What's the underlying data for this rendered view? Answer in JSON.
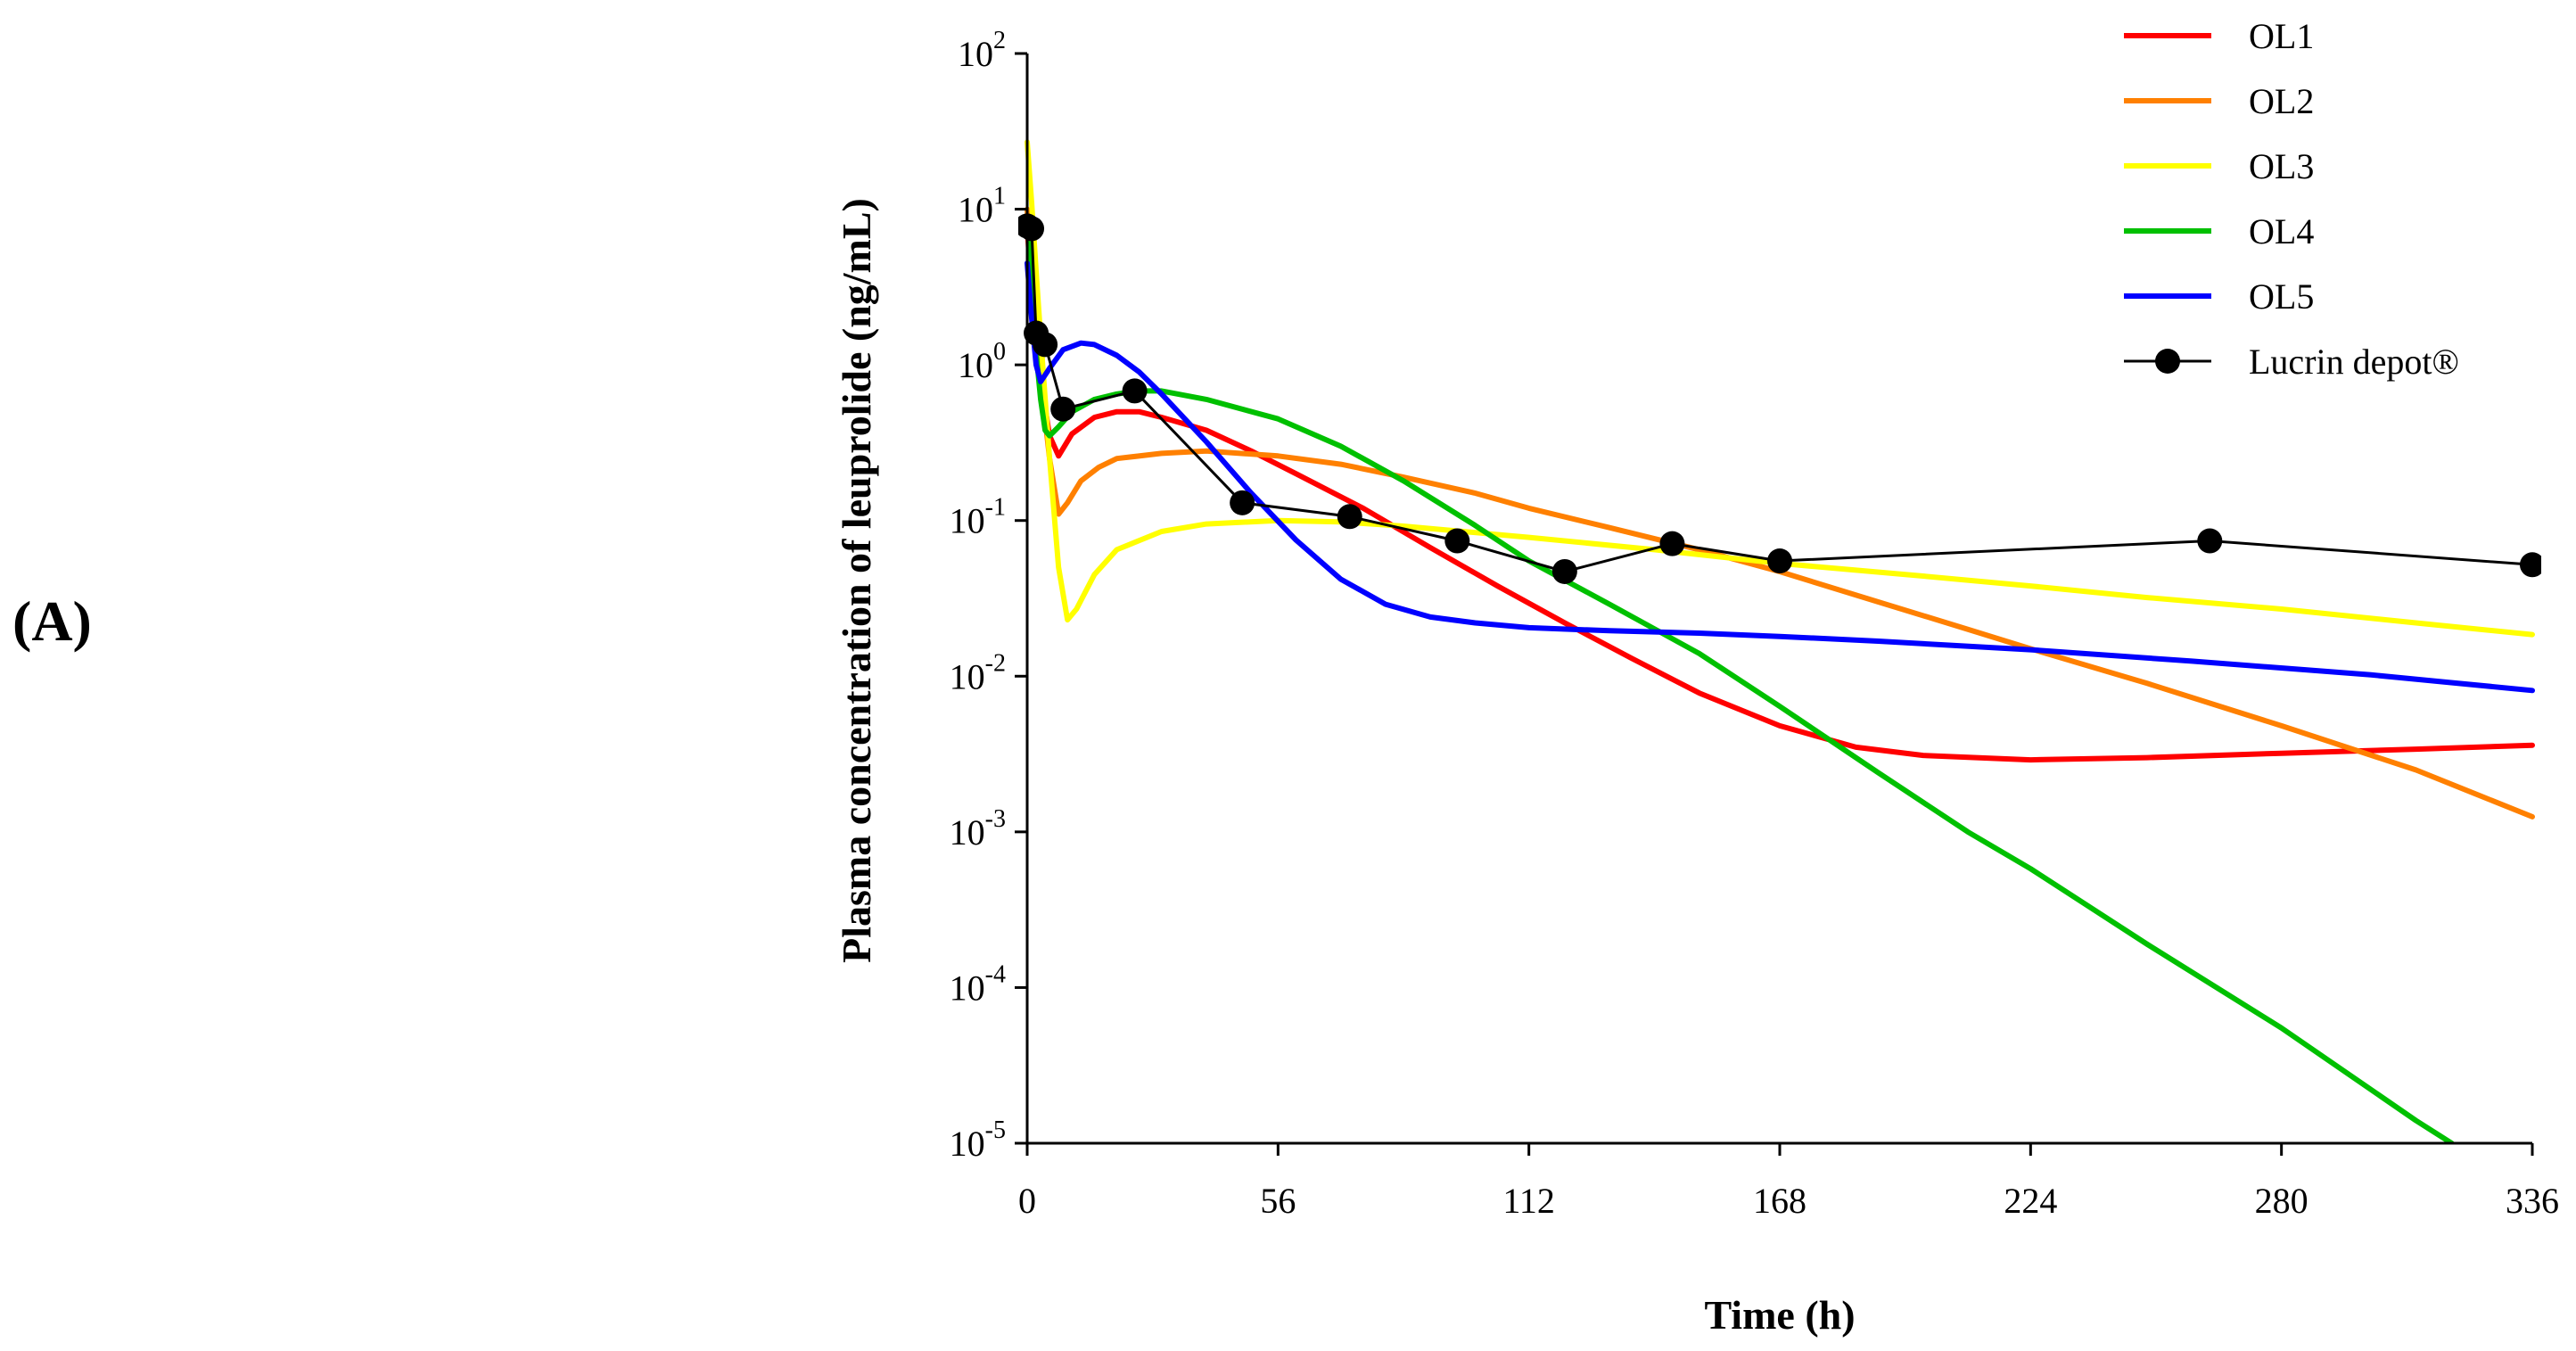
{
  "panel_label": "(A)",
  "chart_data": {
    "type": "line",
    "title": "",
    "xlabel": "Time (h)",
    "ylabel": "Plasma concentration of leuprolide (ng/mL)",
    "xlim": [
      0,
      336
    ],
    "ylim": [
      1e-05,
      100
    ],
    "yscale": "log",
    "x_ticks": [
      0,
      56,
      112,
      168,
      224,
      280,
      336
    ],
    "y_ticks": [
      {
        "value": 100,
        "base": "10",
        "exp": "2"
      },
      {
        "value": 10,
        "base": "10",
        "exp": "1"
      },
      {
        "value": 1,
        "base": "10",
        "exp": "0"
      },
      {
        "value": 0.1,
        "base": "10",
        "exp": "-1"
      },
      {
        "value": 0.01,
        "base": "10",
        "exp": "-2"
      },
      {
        "value": 0.001,
        "base": "10",
        "exp": "-3"
      },
      {
        "value": 0.0001,
        "base": "10",
        "exp": "-4"
      },
      {
        "value": 1e-05,
        "base": "10",
        "exp": "-5"
      }
    ],
    "grid": false,
    "legend_position": "top-right",
    "series": [
      {
        "name": "OL1",
        "color": "#ff0000",
        "marker": "none",
        "x": [
          0,
          1,
          3,
          5,
          7,
          10,
          15,
          20,
          25,
          30,
          40,
          50,
          60,
          75,
          90,
          105,
          120,
          135,
          150,
          168,
          185,
          200,
          224,
          250,
          280,
          310,
          336
        ],
        "y": [
          8,
          2.5,
          0.8,
          0.35,
          0.26,
          0.36,
          0.46,
          0.5,
          0.5,
          0.46,
          0.38,
          0.28,
          0.2,
          0.12,
          0.067,
          0.038,
          0.022,
          0.013,
          0.0078,
          0.0048,
          0.0035,
          0.0031,
          0.0029,
          0.003,
          0.0032,
          0.0034,
          0.0036
        ]
      },
      {
        "name": "OL2",
        "color": "#ff8000",
        "marker": "none",
        "x": [
          0,
          1,
          3,
          5,
          7,
          9,
          12,
          16,
          20,
          30,
          40,
          56,
          70,
          84,
          100,
          112,
          130,
          150,
          168,
          190,
          210,
          224,
          250,
          280,
          310,
          336
        ],
        "y": [
          10,
          3,
          0.8,
          0.25,
          0.11,
          0.13,
          0.18,
          0.22,
          0.25,
          0.27,
          0.28,
          0.26,
          0.23,
          0.19,
          0.15,
          0.12,
          0.09,
          0.065,
          0.047,
          0.03,
          0.02,
          0.015,
          0.009,
          0.0048,
          0.0025,
          0.00125
        ]
      },
      {
        "name": "OL3",
        "color": "#ffff00",
        "marker": "none",
        "x": [
          0,
          1,
          2,
          3,
          5,
          7,
          9,
          11,
          15,
          20,
          30,
          40,
          56,
          70,
          84,
          112,
          140,
          168,
          200,
          224,
          250,
          280,
          310,
          336
        ],
        "y": [
          27,
          11,
          4,
          1.5,
          0.25,
          0.05,
          0.023,
          0.027,
          0.045,
          0.065,
          0.085,
          0.095,
          0.1,
          0.098,
          0.092,
          0.078,
          0.065,
          0.053,
          0.044,
          0.038,
          0.032,
          0.027,
          0.022,
          0.0185
        ]
      },
      {
        "name": "OL4",
        "color": "#00c000",
        "marker": "none",
        "x": [
          0,
          1,
          2,
          3,
          4,
          5,
          7,
          10,
          15,
          20,
          25,
          30,
          40,
          56,
          70,
          84,
          100,
          112,
          130,
          150,
          168,
          190,
          210,
          224,
          250,
          280,
          310,
          318
        ],
        "y": [
          9,
          3,
          1.2,
          0.6,
          0.38,
          0.35,
          0.4,
          0.5,
          0.6,
          0.65,
          0.68,
          0.68,
          0.6,
          0.45,
          0.3,
          0.18,
          0.093,
          0.055,
          0.029,
          0.014,
          0.0064,
          0.0024,
          0.001,
          0.00058,
          0.00019,
          5.5e-05,
          1.4e-05,
          1e-05
        ]
      },
      {
        "name": "OL5",
        "color": "#0000ff",
        "marker": "none",
        "x": [
          0,
          1,
          2,
          3,
          5,
          8,
          12,
          15,
          20,
          25,
          30,
          40,
          50,
          60,
          70,
          80,
          90,
          100,
          112,
          130,
          150,
          168,
          190,
          224,
          260,
          300,
          336
        ],
        "y": [
          4.5,
          2,
          1,
          0.78,
          0.95,
          1.25,
          1.38,
          1.35,
          1.15,
          0.9,
          0.65,
          0.32,
          0.15,
          0.075,
          0.042,
          0.029,
          0.024,
          0.022,
          0.0205,
          0.0196,
          0.0189,
          0.018,
          0.0168,
          0.0148,
          0.0125,
          0.0102,
          0.0081
        ]
      },
      {
        "name": "Lucrin depot®",
        "color": "#000000",
        "marker": "circle",
        "x": [
          0,
          1,
          2,
          4,
          8,
          24,
          48,
          72,
          96,
          120,
          144,
          168,
          264,
          336
        ],
        "y": [
          7.8,
          7.5,
          1.6,
          1.35,
          0.52,
          0.68,
          0.13,
          0.106,
          0.074,
          0.047,
          0.071,
          0.055,
          0.074,
          0.052
        ]
      }
    ]
  }
}
